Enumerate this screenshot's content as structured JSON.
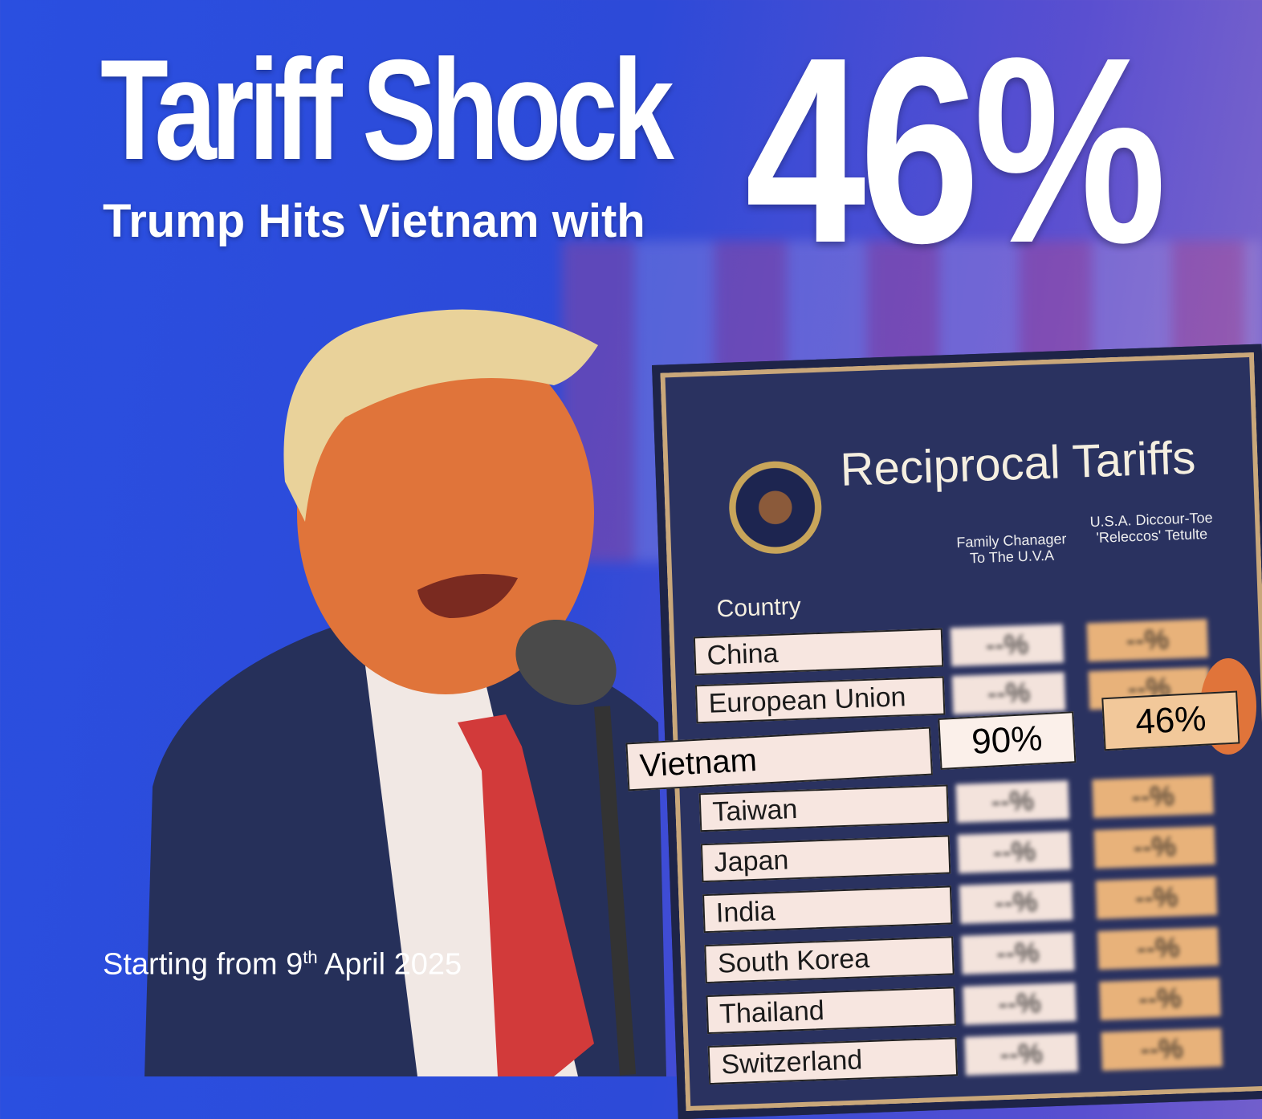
{
  "headline": {
    "title": "Tariff Shock",
    "subtitle": "Trump Hits Vietnam with",
    "rate": "46%"
  },
  "footer": {
    "date_prefix": "Starting from 9",
    "date_sup": "th",
    "date_suffix": " April 2025"
  },
  "board": {
    "title": "Reciprocal Tariffs",
    "headers": {
      "country": "Country",
      "col1": "Family Chanager To The U.V.A",
      "col2": "U.S.A. Diccour-Toe 'Releccos' Tetulte"
    },
    "rows": [
      {
        "country": "China"
      },
      {
        "country": "European Union"
      },
      {
        "country": "Taiwan"
      },
      {
        "country": "Japan"
      },
      {
        "country": "India"
      },
      {
        "country": "South Korea"
      },
      {
        "country": "Thailand"
      },
      {
        "country": "Switzerland"
      }
    ],
    "highlight": {
      "country": "Vietnam",
      "col1": "90%",
      "col2": "46%"
    }
  },
  "colors": {
    "background": "#2a4fe0",
    "board": "#2a3260",
    "tie": "#d23a3a",
    "suit": "#26305a"
  }
}
